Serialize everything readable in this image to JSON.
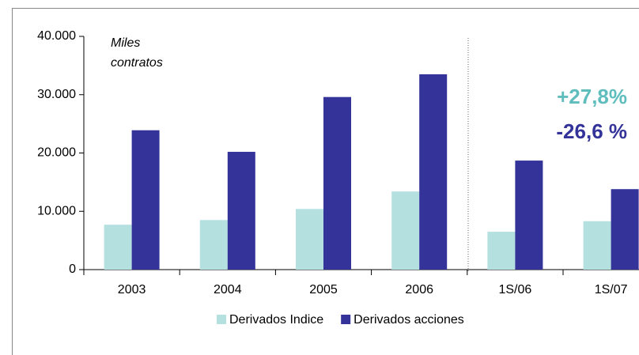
{
  "chart_data": {
    "type": "bar",
    "unit_label": [
      "Miles",
      "contratos"
    ],
    "annotations": [
      {
        "text": "+27,8%",
        "color": "#5fbdbd"
      },
      {
        "text": "-26,6 %",
        "color": "#333399"
      }
    ],
    "categories": [
      "2003",
      "2004",
      "2005",
      "2006",
      "1S/06",
      "1S/07"
    ],
    "series": [
      {
        "name": "Derivados Indice",
        "color": "#b5e0e0",
        "values": [
          7700,
          8500,
          10400,
          13400,
          6500,
          8300
        ]
      },
      {
        "name": "Derivados acciones",
        "color": "#333399",
        "values": [
          23900,
          20200,
          29600,
          33500,
          18700,
          13800
        ]
      }
    ],
    "ylim": [
      0,
      40000
    ],
    "yticks": [
      0,
      {
        "value": 10000,
        "label": "10.000"
      },
      {
        "value": 20000,
        "label": "20.000"
      },
      {
        "value": 30000,
        "label": "30.000"
      },
      {
        "value": 40000,
        "label": "40.000"
      }
    ],
    "grid": false
  }
}
